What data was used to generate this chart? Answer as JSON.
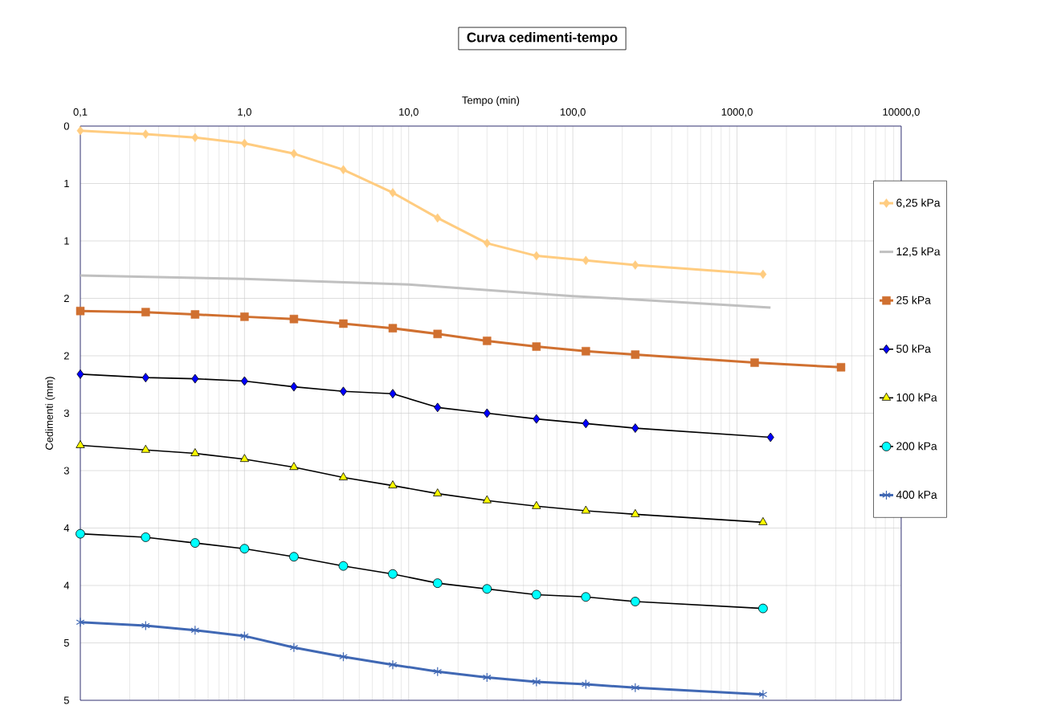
{
  "chart_data": {
    "type": "line",
    "title": "Curva cedimenti-tempo",
    "xlabel": "Tempo (min)",
    "ylabel": "Cedimenti (mm)",
    "log": "x",
    "grid": true,
    "legend": "right",
    "xlim": [
      0.1,
      10000
    ],
    "ylim": [
      5,
      0
    ],
    "xticks": [
      {
        "value": 0.1,
        "label": "0,1"
      },
      {
        "value": 1,
        "label": "1,0"
      },
      {
        "value": 10,
        "label": "10,0"
      },
      {
        "value": 100,
        "label": "100,0"
      },
      {
        "value": 1000,
        "label": "1000,0"
      },
      {
        "value": 10000,
        "label": "10000,0"
      }
    ],
    "yticks": [
      0,
      {
        "value": 0.5,
        "label": "1"
      },
      1,
      {
        "value": 1.5,
        "label": "2"
      },
      2,
      {
        "value": 2.5,
        "label": "3"
      },
      3,
      {
        "value": 3.5,
        "label": "4"
      },
      4,
      {
        "value": 4.5,
        "label": "5"
      },
      5
    ],
    "x": [
      0.1,
      0.25,
      0.5,
      1,
      2,
      4,
      8,
      15,
      30,
      60,
      120,
      240,
      1440
    ],
    "series": [
      {
        "name": "6,25 kPa",
        "color": "#ffcc80",
        "marker": "diamond",
        "values": [
          0.04,
          0.07,
          0.1,
          0.15,
          0.24,
          0.38,
          0.58,
          0.8,
          1.02,
          1.13,
          1.17,
          1.21,
          1.29
        ]
      },
      {
        "name": "12,5 kPa",
        "color": "#c0c0c0",
        "marker": "none",
        "x": [
          0.1,
          1,
          10,
          100,
          240,
          1600
        ],
        "values": [
          1.3,
          1.33,
          1.38,
          1.48,
          1.51,
          1.58
        ]
      },
      {
        "name": "25 kPa",
        "color": "#d07030",
        "marker": "square",
        "x": [
          0.1,
          0.25,
          0.5,
          1,
          2,
          4,
          8,
          15,
          30,
          60,
          120,
          240,
          1280,
          4300
        ],
        "values": [
          1.61,
          1.62,
          1.64,
          1.66,
          1.68,
          1.72,
          1.76,
          1.81,
          1.87,
          1.92,
          1.96,
          1.99,
          2.06,
          2.1
        ]
      },
      {
        "name": "50 kPa",
        "color": "#000000",
        "marker": "diamond",
        "colors": [
          "#0000ff",
          "#0000ff",
          "#0000ff",
          "#0000ff",
          "#0000ff",
          "#0000ff",
          "#0000ff",
          "#0000ff",
          "#0000ff",
          "#0000ff",
          "#0000ff",
          "#0000ff",
          "#0000ff"
        ],
        "x": [
          0.1,
          0.25,
          0.5,
          1,
          2,
          4,
          8,
          15,
          30,
          60,
          120,
          240,
          1600
        ],
        "values": [
          2.16,
          2.19,
          2.2,
          2.22,
          2.27,
          2.31,
          2.33,
          2.45,
          2.5,
          2.55,
          2.59,
          2.63,
          2.71
        ]
      },
      {
        "name": "100 kPa",
        "color": "#000000",
        "marker": "triangle",
        "colors": [
          "#ffff00",
          "#ffff00",
          "#ffff00",
          "#ffff00",
          "#ffff00",
          "#ffff00",
          "#ffff00",
          "#ffff00",
          "#ffff00",
          "#ffff00",
          "#ffff00",
          "#ffff00",
          "#ffff00"
        ],
        "values": [
          2.78,
          2.82,
          2.85,
          2.9,
          2.97,
          3.06,
          3.13,
          3.2,
          3.26,
          3.31,
          3.35,
          3.38,
          3.45
        ]
      },
      {
        "name": "200 kPa",
        "color": "#000000",
        "marker": "circle",
        "colors": [
          "#00ffff",
          "#00ffff",
          "#00ffff",
          "#00ffff",
          "#00ffff",
          "#00ffff",
          "#00ffff",
          "#00ffff",
          "#00ffff",
          "#00ffff",
          "#00ffff",
          "#00ffff",
          "#00ffff"
        ],
        "values": [
          3.55,
          3.58,
          3.63,
          3.68,
          3.75,
          3.83,
          3.9,
          3.98,
          4.03,
          4.08,
          4.1,
          4.14,
          4.2
        ]
      },
      {
        "name": "400 kPa",
        "color": "#4068b4",
        "marker": "cross",
        "values": [
          4.32,
          4.35,
          4.39,
          4.44,
          4.54,
          4.62,
          4.69,
          4.75,
          4.8,
          4.84,
          4.86,
          4.89,
          4.95
        ]
      }
    ]
  }
}
